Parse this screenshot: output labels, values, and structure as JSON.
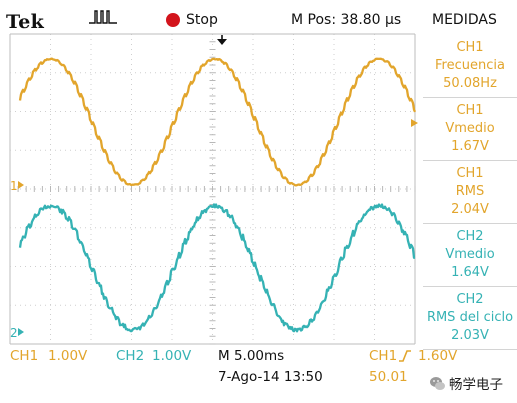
{
  "header": {
    "brand": "Tek",
    "trigger_mode_icon": "pulse-trigger-icon",
    "state_label": "Stop",
    "horizontal_position": "M Pos: 38.80 μs",
    "measurements_title": "MEDIDAS"
  },
  "colors": {
    "ch1": "#e2a52c",
    "ch2": "#35b2b4",
    "grid": "#cfcfcf",
    "stop": "#d3141c",
    "background": "#ffffff"
  },
  "graticule": {
    "divisions_x": 10,
    "divisions_y": 8,
    "minor_per_division": 5
  },
  "traces": {
    "ch1": {
      "marker_label": "1",
      "waveform": "sine",
      "frequency_hz": 50.08,
      "mean_v": 1.67,
      "rms_v": 2.04,
      "volts_per_div": 1.0,
      "visible_cycles": 2.6,
      "noise": "low"
    },
    "ch2": {
      "marker_label": "2",
      "waveform": "sine (stepped/noisy)",
      "mean_v": 1.64,
      "rms_v": 2.03,
      "volts_per_div": 1.0,
      "visible_cycles": 2.6,
      "noise": "high"
    }
  },
  "measurements": [
    {
      "channel": "CH1",
      "name": "Frecuencia",
      "value": "50.08Hz",
      "color": "ch1"
    },
    {
      "channel": "CH1",
      "name": "Vmedio",
      "value": "1.67V",
      "color": "ch1"
    },
    {
      "channel": "CH1",
      "name": "RMS",
      "value": "2.04V",
      "color": "ch1"
    },
    {
      "channel": "CH2",
      "name": "Vmedio",
      "value": "1.64V",
      "color": "ch2"
    },
    {
      "channel": "CH2",
      "name": "RMS del ciclo",
      "value": "2.03V",
      "color": "ch2"
    }
  ],
  "status": {
    "ch1_label": "CH1",
    "ch1_scale": "1.00V",
    "ch2_label": "CH2",
    "ch2_scale": "1.00V",
    "timebase": "M 5.00ms",
    "datetime": "7-Ago-14 13:50",
    "trigger_source": "CH1",
    "trigger_edge_icon": "rising-edge-icon",
    "trigger_level": "1.60V",
    "trigger_freq_partial": "50.01"
  },
  "watermark": {
    "logo_icon": "wechat-logo-icon",
    "text": "畅学电子"
  }
}
